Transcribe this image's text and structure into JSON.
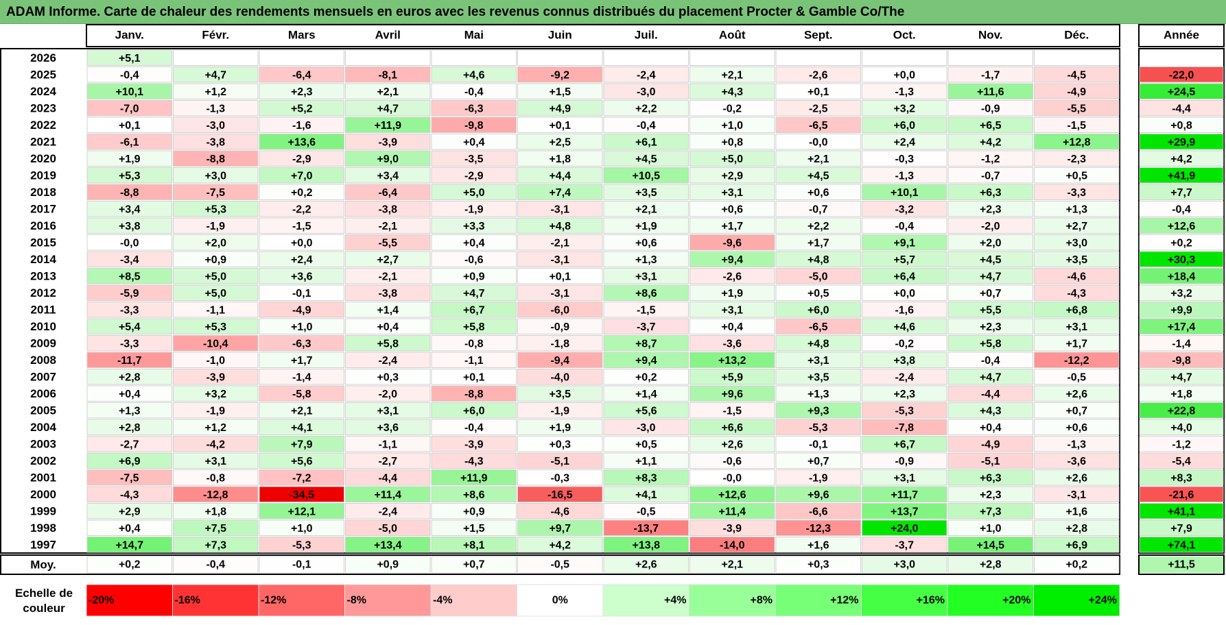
{
  "title": "ADAM Informe. Carte de chaleur des rendements mensuels en euros avec les revenus connus distribués du placement Procter & Gamble Co/The",
  "legend_label": "Echelle de couleur",
  "chart_data": {
    "type": "heatmap",
    "title": "ADAM Informe. Carte de chaleur des rendements mensuels en euros avec les revenus connus distribués du placement Procter & Gamble Co/The",
    "months": [
      "Janv.",
      "Févr.",
      "Mars",
      "Avril",
      "Mai",
      "Juin",
      "Juil.",
      "Août",
      "Sept.",
      "Oct.",
      "Nov.",
      "Déc."
    ],
    "annual_label": "Année",
    "average_label": "Moy.",
    "rows": [
      {
        "year": "2026",
        "values": [
          "+5,1",
          null,
          null,
          null,
          null,
          null,
          null,
          null,
          null,
          null,
          null,
          null
        ],
        "annual": null
      },
      {
        "year": "2025",
        "values": [
          "-0,4",
          "+4,7",
          "-6,4",
          "-8,1",
          "+4,6",
          "-9,2",
          "-2,4",
          "+2,1",
          "-2,6",
          "+0,0",
          "-1,7",
          "-4,5"
        ],
        "annual": "-22,0"
      },
      {
        "year": "2024",
        "values": [
          "+10,1",
          "+1,2",
          "+2,3",
          "+2,1",
          "-0,4",
          "+1,5",
          "-3,0",
          "+4,3",
          "+0,1",
          "-1,3",
          "+11,6",
          "-4,9"
        ],
        "annual": "+24,5"
      },
      {
        "year": "2023",
        "values": [
          "-7,0",
          "-1,3",
          "+5,2",
          "+4,7",
          "-6,3",
          "+4,9",
          "+2,2",
          "-0,2",
          "-2,5",
          "+3,2",
          "-0,9",
          "-5,5"
        ],
        "annual": "-4,4"
      },
      {
        "year": "2022",
        "values": [
          "+0,1",
          "-3,0",
          "-1,6",
          "+11,9",
          "-9,8",
          "+0,1",
          "-0,4",
          "+1,0",
          "-6,5",
          "+6,0",
          "+6,5",
          "-1,5"
        ],
        "annual": "+0,8"
      },
      {
        "year": "2021",
        "values": [
          "-6,1",
          "-3,8",
          "+13,6",
          "-3,9",
          "+0,4",
          "+2,5",
          "+6,1",
          "+0,8",
          "-0,0",
          "+2,4",
          "+4,2",
          "+12,8"
        ],
        "annual": "+29,9"
      },
      {
        "year": "2020",
        "values": [
          "+1,9",
          "-8,8",
          "-2,9",
          "+9,0",
          "-3,5",
          "+1,8",
          "+4,5",
          "+5,0",
          "+2,1",
          "-0,3",
          "-1,2",
          "-2,3"
        ],
        "annual": "+4,2"
      },
      {
        "year": "2019",
        "values": [
          "+5,3",
          "+3,0",
          "+7,0",
          "+3,4",
          "-2,9",
          "+4,4",
          "+10,5",
          "+2,9",
          "+4,5",
          "-1,3",
          "-0,7",
          "+0,5"
        ],
        "annual": "+41,9"
      },
      {
        "year": "2018",
        "values": [
          "-8,8",
          "-7,5",
          "+0,2",
          "-6,4",
          "+5,0",
          "+7,4",
          "+3,5",
          "+3,1",
          "+0,6",
          "+10,1",
          "+6,3",
          "-3,3"
        ],
        "annual": "+7,7"
      },
      {
        "year": "2017",
        "values": [
          "+3,4",
          "+5,3",
          "-2,2",
          "-3,8",
          "-1,9",
          "-3,1",
          "+2,1",
          "+0,6",
          "-0,7",
          "-3,2",
          "+2,3",
          "+1,3"
        ],
        "annual": "-0,4"
      },
      {
        "year": "2016",
        "values": [
          "+3,8",
          "-1,9",
          "-1,5",
          "-2,1",
          "+3,3",
          "+4,8",
          "+1,9",
          "+1,7",
          "+2,2",
          "-0,4",
          "-2,0",
          "+2,7"
        ],
        "annual": "+12,6"
      },
      {
        "year": "2015",
        "values": [
          "-0,0",
          "+2,0",
          "+0,0",
          "-5,5",
          "+0,4",
          "-2,1",
          "+0,6",
          "-9,6",
          "+1,7",
          "+9,1",
          "+2,0",
          "+3,0"
        ],
        "annual": "+0,2"
      },
      {
        "year": "2014",
        "values": [
          "-3,4",
          "+0,9",
          "+2,4",
          "+2,7",
          "-0,6",
          "-3,1",
          "+1,3",
          "+9,4",
          "+4,8",
          "+5,7",
          "+4,5",
          "+3,5"
        ],
        "annual": "+30,3"
      },
      {
        "year": "2013",
        "values": [
          "+8,5",
          "+5,0",
          "+3,6",
          "-2,1",
          "+0,9",
          "+0,1",
          "+3,1",
          "-2,6",
          "-5,0",
          "+6,4",
          "+4,7",
          "-4,6"
        ],
        "annual": "+18,4"
      },
      {
        "year": "2012",
        "values": [
          "-5,9",
          "+5,0",
          "-0,1",
          "-3,8",
          "+4,7",
          "-3,1",
          "+8,6",
          "+1,9",
          "+0,5",
          "+0,0",
          "+0,7",
          "-4,3"
        ],
        "annual": "+3,2"
      },
      {
        "year": "2011",
        "values": [
          "-3,3",
          "-1,1",
          "-4,9",
          "+1,4",
          "+6,7",
          "-6,0",
          "-1,5",
          "+3,1",
          "+6,0",
          "-1,6",
          "+5,5",
          "+6,8"
        ],
        "annual": "+9,9"
      },
      {
        "year": "2010",
        "values": [
          "+5,4",
          "+5,3",
          "+1,0",
          "+0,4",
          "+5,8",
          "-0,9",
          "-3,7",
          "+0,4",
          "-6,5",
          "+4,6",
          "+2,3",
          "+3,1"
        ],
        "annual": "+17,4"
      },
      {
        "year": "2009",
        "values": [
          "-3,3",
          "-10,4",
          "-6,3",
          "+5,8",
          "-0,8",
          "-1,8",
          "+8,7",
          "-3,6",
          "+4,8",
          "-0,2",
          "+5,8",
          "+1,7"
        ],
        "annual": "-1,4"
      },
      {
        "year": "2008",
        "values": [
          "-11,7",
          "-1,0",
          "+1,7",
          "-2,4",
          "-1,1",
          "-9,4",
          "+9,4",
          "+13,2",
          "+3,1",
          "+3,8",
          "-0,4",
          "-12,2"
        ],
        "annual": "-9,8"
      },
      {
        "year": "2007",
        "values": [
          "+2,8",
          "-3,9",
          "-1,4",
          "+0,3",
          "+0,1",
          "-4,0",
          "+0,2",
          "+5,9",
          "+3,5",
          "-2,4",
          "+4,7",
          "-0,5"
        ],
        "annual": "+4,7"
      },
      {
        "year": "2006",
        "values": [
          "+0,4",
          "+3,2",
          "-5,8",
          "-2,0",
          "-8,8",
          "+3,5",
          "+1,4",
          "+9,6",
          "+1,3",
          "+2,3",
          "-4,4",
          "+2,6"
        ],
        "annual": "+1,8"
      },
      {
        "year": "2005",
        "values": [
          "+1,3",
          "-1,9",
          "+2,1",
          "+3,1",
          "+6,0",
          "-1,9",
          "+5,6",
          "-1,5",
          "+9,3",
          "-5,3",
          "+4,3",
          "+0,7"
        ],
        "annual": "+22,8"
      },
      {
        "year": "2004",
        "values": [
          "+2,8",
          "+1,2",
          "+4,1",
          "+3,6",
          "-0,4",
          "+1,9",
          "-3,0",
          "+6,6",
          "-5,3",
          "-7,8",
          "+0,4",
          "+0,6"
        ],
        "annual": "+4,0"
      },
      {
        "year": "2003",
        "values": [
          "-2,7",
          "-4,2",
          "+7,9",
          "-1,1",
          "-3,9",
          "+0,3",
          "+0,5",
          "+2,6",
          "-0,1",
          "+6,7",
          "-4,9",
          "-1,3"
        ],
        "annual": "-1,2"
      },
      {
        "year": "2002",
        "values": [
          "+6,9",
          "+3,1",
          "+5,6",
          "-2,7",
          "-4,3",
          "-5,1",
          "+1,1",
          "-0,6",
          "+0,7",
          "-0,9",
          "-5,1",
          "-3,6"
        ],
        "annual": "-5,4"
      },
      {
        "year": "2001",
        "values": [
          "-7,5",
          "-0,8",
          "-7,2",
          "-4,4",
          "+11,9",
          "-0,3",
          "+8,3",
          "-0,0",
          "-1,9",
          "+3,1",
          "+6,3",
          "+2,6"
        ],
        "annual": "+8,3"
      },
      {
        "year": "2000",
        "values": [
          "-4,3",
          "-12,8",
          "-34,5",
          "+11,4",
          "+8,6",
          "-16,5",
          "+4,1",
          "+12,6",
          "+9,6",
          "+11,7",
          "+2,3",
          "-3,1"
        ],
        "annual": "-21,6"
      },
      {
        "year": "1999",
        "values": [
          "+2,9",
          "+1,8",
          "+12,1",
          "-2,4",
          "+0,9",
          "-4,6",
          "-0,5",
          "+11,4",
          "-6,6",
          "+13,7",
          "+7,3",
          "+1,6"
        ],
        "annual": "+41,1"
      },
      {
        "year": "1998",
        "values": [
          "+0,4",
          "+7,5",
          "+1,0",
          "-5,0",
          "+1,5",
          "+9,7",
          "-13,7",
          "-3,9",
          "-12,3",
          "+24,0",
          "+1,0",
          "+2,8"
        ],
        "annual": "+7,9"
      },
      {
        "year": "1997",
        "values": [
          "+14,7",
          "+7,3",
          "-5,3",
          "+13,4",
          "+8,1",
          "+4,2",
          "+13,8",
          "-14,0",
          "+1,6",
          "-3,7",
          "+14,5",
          "+6,9"
        ],
        "annual": "+74,1"
      }
    ],
    "average": {
      "values": [
        "+0,2",
        "-0,4",
        "-0,1",
        "+0,9",
        "+0,7",
        "-0,5",
        "+2,6",
        "+2,1",
        "+0,3",
        "+3,0",
        "+2,8",
        "+0,2"
      ],
      "annual": "+11,5"
    },
    "scale": [
      "-20%",
      "-16%",
      "-12%",
      "-8%",
      "-4%",
      "0%",
      "+4%",
      "+8%",
      "+12%",
      "+16%",
      "+20%",
      "+24%"
    ],
    "scale_colors": [
      "#ff0000",
      "#ff3333",
      "#ff6666",
      "#ff9999",
      "#ffcccc",
      "#ffffff",
      "#ccffcc",
      "#99ff99",
      "#77ff77",
      "#44ff44",
      "#22ff22",
      "#00ee00"
    ]
  }
}
